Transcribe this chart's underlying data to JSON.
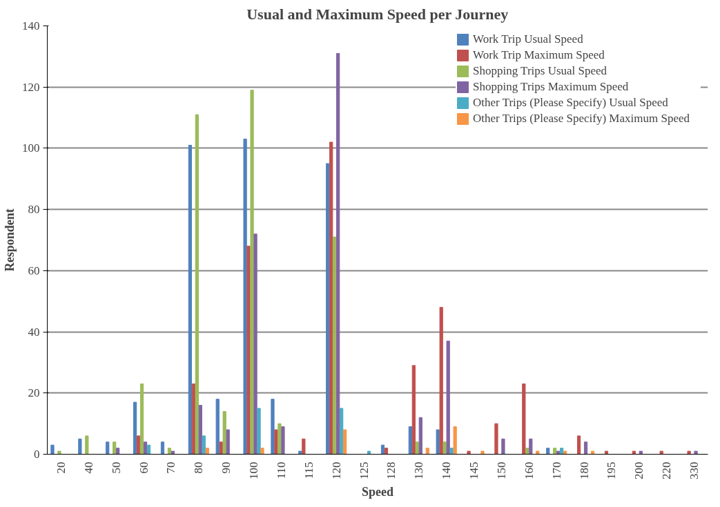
{
  "chart_data": {
    "type": "bar",
    "title": "Usual and Maximum Speed per Journey",
    "xlabel": "Speed",
    "ylabel": "Respondent",
    "categories": [
      "20",
      "40",
      "50",
      "60",
      "70",
      "80",
      "90",
      "100",
      "110",
      "115",
      "120",
      "125",
      "128",
      "130",
      "140",
      "145",
      "150",
      "160",
      "170",
      "180",
      "195",
      "200",
      "220",
      "330"
    ],
    "series": [
      {
        "name": "Work Trip Usual Speed",
        "color": "#4f81bd",
        "values": [
          3,
          5,
          4,
          17,
          4,
          101,
          18,
          103,
          18,
          1,
          95,
          0,
          3,
          9,
          8,
          0,
          0,
          0,
          2,
          0,
          0,
          0,
          0,
          0
        ]
      },
      {
        "name": "Work Trip Maximum Speed",
        "color": "#c0504d",
        "values": [
          0,
          0,
          0,
          6,
          0,
          23,
          4,
          68,
          8,
          5,
          102,
          0,
          2,
          29,
          48,
          1,
          10,
          23,
          0,
          6,
          1,
          1,
          1,
          1
        ]
      },
      {
        "name": "Shopping Trips Usual Speed",
        "color": "#9bbb59",
        "values": [
          1,
          6,
          4,
          23,
          2,
          111,
          14,
          119,
          10,
          0,
          71,
          0,
          0,
          4,
          4,
          0,
          0,
          2,
          2,
          0,
          0,
          0,
          0,
          0
        ]
      },
      {
        "name": "Shopping Trips Maximum Speed",
        "color": "#8064a2",
        "values": [
          0,
          0,
          2,
          4,
          1,
          16,
          8,
          72,
          9,
          0,
          131,
          0,
          0,
          12,
          37,
          0,
          5,
          5,
          1,
          4,
          0,
          1,
          0,
          1
        ]
      },
      {
        "name": "Other Trips (Please Specify) Usual Speed",
        "color": "#4bacc6",
        "values": [
          0,
          0,
          0,
          3,
          0,
          6,
          0,
          15,
          0,
          0,
          15,
          1,
          0,
          0,
          2,
          0,
          0,
          0,
          2,
          0,
          0,
          0,
          0,
          0
        ]
      },
      {
        "name": "Other Trips (Please Specify) Maximum Speed",
        "color": "#f79646",
        "values": [
          0,
          0,
          0,
          0,
          0,
          2,
          0,
          2,
          0,
          0,
          8,
          0,
          0,
          2,
          9,
          1,
          0,
          1,
          1,
          1,
          0,
          0,
          0,
          0
        ]
      }
    ],
    "ylim": [
      0,
      140
    ],
    "yticks": [
      0,
      20,
      40,
      60,
      80,
      100,
      120,
      140
    ],
    "grid": "y",
    "legend": "top right"
  }
}
